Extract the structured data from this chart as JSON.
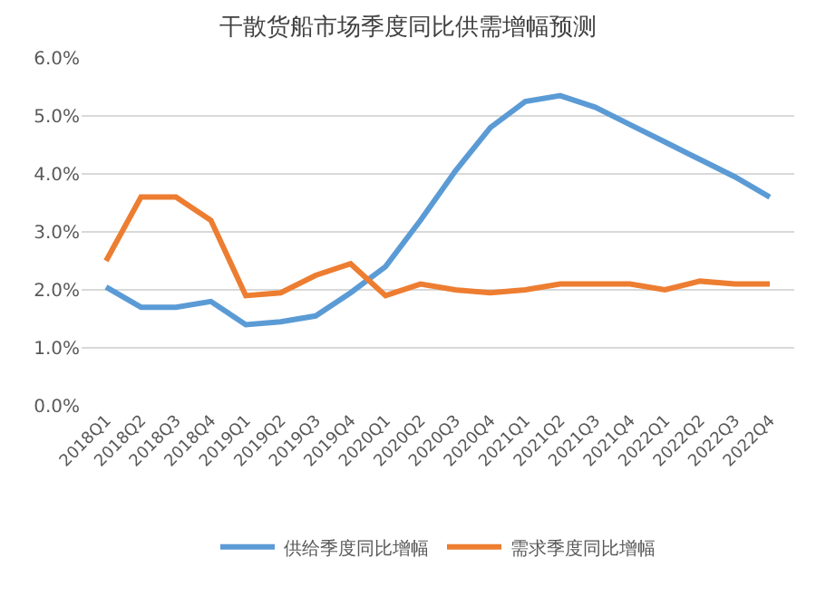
{
  "chart_data": {
    "type": "line",
    "title": "干散货船市场季度同比供需增幅预测",
    "categories": [
      "2018Q1",
      "2018Q2",
      "2018Q3",
      "2018Q4",
      "2019Q1",
      "2019Q2",
      "2019Q3",
      "2019Q4",
      "2020Q1",
      "2020Q2",
      "2020Q3",
      "2020Q4",
      "2021Q1",
      "2021Q2",
      "2021Q3",
      "2021Q4",
      "2022Q1",
      "2022Q2",
      "2022Q3",
      "2022Q4"
    ],
    "series": [
      {
        "name": "供给季度同比增幅",
        "color": "#5b9bd5",
        "values": [
          2.05,
          1.7,
          1.7,
          1.8,
          1.4,
          1.45,
          1.55,
          1.95,
          2.4,
          3.2,
          4.05,
          4.8,
          5.25,
          5.35,
          5.15,
          4.85,
          4.55,
          4.25,
          3.95,
          3.6
        ]
      },
      {
        "name": "需求季度同比增幅",
        "color": "#ed7d31",
        "values": [
          2.5,
          3.6,
          3.6,
          3.2,
          1.9,
          1.95,
          2.25,
          2.45,
          1.9,
          2.1,
          2.0,
          1.95,
          2.0,
          2.1,
          2.1,
          2.1,
          2.0,
          2.15,
          2.1,
          2.1
        ]
      }
    ],
    "ylim": [
      0,
      6
    ],
    "yticks": [
      {
        "value": 0,
        "label": "0.0%"
      },
      {
        "value": 1,
        "label": "1.0%"
      },
      {
        "value": 2,
        "label": "2.0%"
      },
      {
        "value": 3,
        "label": "3.0%"
      },
      {
        "value": 4,
        "label": "4.0%"
      },
      {
        "value": 5,
        "label": "5.0%"
      },
      {
        "value": 6,
        "label": "6.0%"
      }
    ],
    "grid": "y",
    "legend": "bottom",
    "marker": "none",
    "line_style": "solid"
  }
}
